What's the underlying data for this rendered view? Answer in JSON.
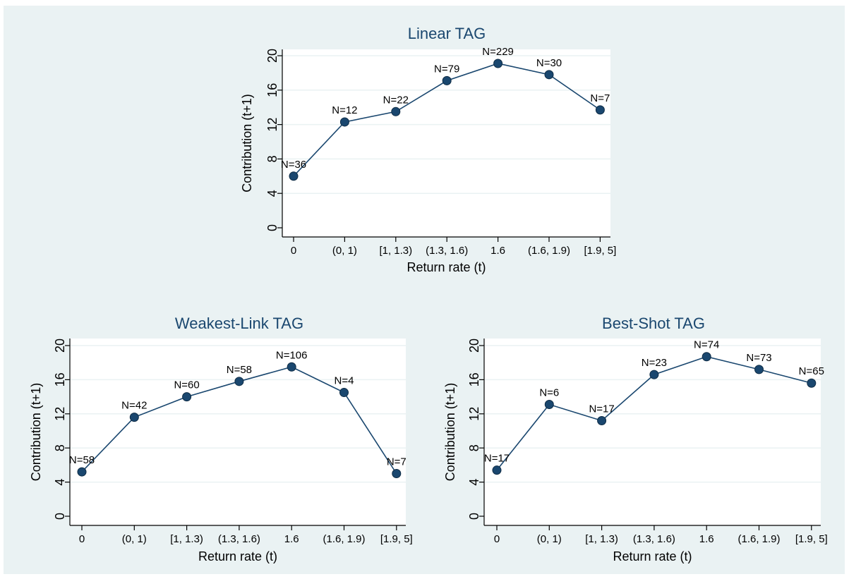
{
  "chart_data": [
    {
      "type": "line",
      "title": "Linear TAG",
      "xlabel": "Return rate (t)",
      "ylabel": "Contribution (t+1)",
      "categories": [
        "0",
        "(0, 1)",
        "[1, 1.3)",
        "(1.3, 1.6)",
        "1.6",
        "(1.6, 1.9)",
        "[1.9, 5]"
      ],
      "values": [
        6.0,
        12.3,
        13.5,
        17.1,
        19.1,
        17.8,
        13.7
      ],
      "point_labels": [
        "N=36",
        "N=12",
        "N=22",
        "N=79",
        "N=229",
        "N=30",
        "N=7"
      ],
      "yticks": [
        0,
        4,
        8,
        12,
        16,
        20
      ],
      "ylim": [
        0,
        20
      ],
      "grid": true,
      "colors": {
        "line": "#1a476f",
        "marker": "#1a476f",
        "plot_bg": "#ffffff",
        "frame_bg": "#eaf2f3",
        "grid": "#eaf2f3",
        "title": "#1a476f"
      }
    },
    {
      "type": "line",
      "title": "Weakest-Link TAG",
      "xlabel": "Return rate (t)",
      "ylabel": "Contribution (t+1)",
      "categories": [
        "0",
        "(0, 1)",
        "[1, 1.3)",
        "(1.3, 1.6)",
        "1.6",
        "(1.6, 1.9)",
        "[1.9, 5]"
      ],
      "values": [
        5.2,
        11.6,
        14.0,
        15.8,
        17.5,
        14.5,
        5.0
      ],
      "point_labels": [
        "N=58",
        "N=42",
        "N=60",
        "N=58",
        "N=106",
        "N=4",
        "N=7"
      ],
      "yticks": [
        0,
        4,
        8,
        12,
        16,
        20
      ],
      "ylim": [
        0,
        20
      ],
      "grid": true,
      "colors": {
        "line": "#1a476f",
        "marker": "#1a476f",
        "plot_bg": "#ffffff",
        "frame_bg": "#eaf2f3",
        "grid": "#eaf2f3",
        "title": "#1a476f"
      }
    },
    {
      "type": "line",
      "title": "Best-Shot TAG",
      "xlabel": "Return rate (t)",
      "ylabel": "Contribution (t+1)",
      "categories": [
        "0",
        "(0, 1)",
        "[1, 1.3)",
        "(1.3, 1.6)",
        "1.6",
        "(1.6, 1.9)",
        "[1.9, 5]"
      ],
      "values": [
        5.4,
        13.1,
        11.2,
        16.6,
        18.7,
        17.2,
        15.6
      ],
      "point_labels": [
        "N=17",
        "N=6",
        "N=17",
        "N=23",
        "N=74",
        "N=73",
        "N=65"
      ],
      "yticks": [
        0,
        4,
        8,
        12,
        16,
        20
      ],
      "ylim": [
        0,
        20
      ],
      "grid": true,
      "colors": {
        "line": "#1a476f",
        "marker": "#1a476f",
        "plot_bg": "#ffffff",
        "frame_bg": "#eaf2f3",
        "grid": "#eaf2f3",
        "title": "#1a476f"
      }
    }
  ]
}
